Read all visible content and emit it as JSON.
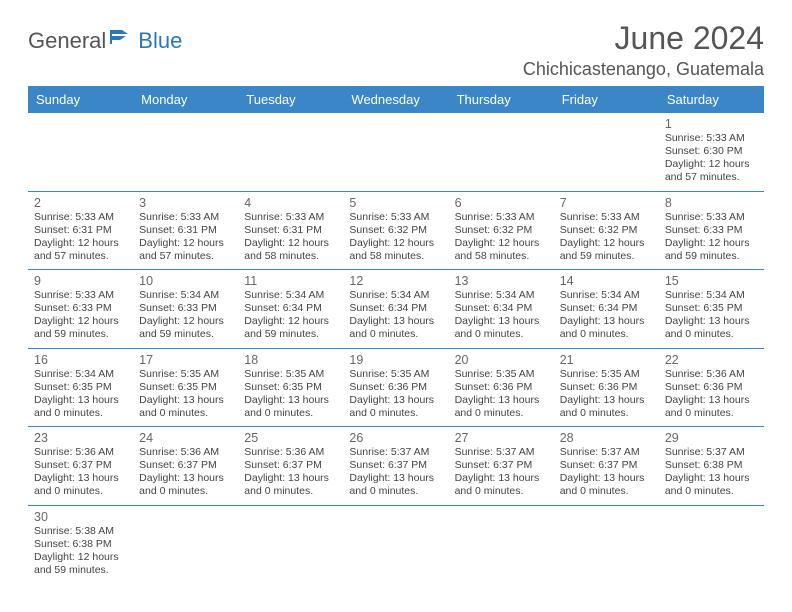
{
  "logo": {
    "text1": "General",
    "text2": "Blue"
  },
  "title": "June 2024",
  "location": "Chichicastenango, Guatemala",
  "colors": {
    "header_bg": "#3b86c6",
    "header_text": "#ffffff",
    "border": "#3b86c6",
    "body_text": "#444444",
    "daynum": "#666666",
    "title_text": "#555555",
    "logo_blue": "#2a78b8",
    "background": "#ffffff"
  },
  "weekdays": [
    "Sunday",
    "Monday",
    "Tuesday",
    "Wednesday",
    "Thursday",
    "Friday",
    "Saturday"
  ],
  "days": {
    "1": {
      "sunrise": "5:33 AM",
      "sunset": "6:30 PM",
      "daylight": "12 hours and 57 minutes."
    },
    "2": {
      "sunrise": "5:33 AM",
      "sunset": "6:31 PM",
      "daylight": "12 hours and 57 minutes."
    },
    "3": {
      "sunrise": "5:33 AM",
      "sunset": "6:31 PM",
      "daylight": "12 hours and 57 minutes."
    },
    "4": {
      "sunrise": "5:33 AM",
      "sunset": "6:31 PM",
      "daylight": "12 hours and 58 minutes."
    },
    "5": {
      "sunrise": "5:33 AM",
      "sunset": "6:32 PM",
      "daylight": "12 hours and 58 minutes."
    },
    "6": {
      "sunrise": "5:33 AM",
      "sunset": "6:32 PM",
      "daylight": "12 hours and 58 minutes."
    },
    "7": {
      "sunrise": "5:33 AM",
      "sunset": "6:32 PM",
      "daylight": "12 hours and 59 minutes."
    },
    "8": {
      "sunrise": "5:33 AM",
      "sunset": "6:33 PM",
      "daylight": "12 hours and 59 minutes."
    },
    "9": {
      "sunrise": "5:33 AM",
      "sunset": "6:33 PM",
      "daylight": "12 hours and 59 minutes."
    },
    "10": {
      "sunrise": "5:34 AM",
      "sunset": "6:33 PM",
      "daylight": "12 hours and 59 minutes."
    },
    "11": {
      "sunrise": "5:34 AM",
      "sunset": "6:34 PM",
      "daylight": "12 hours and 59 minutes."
    },
    "12": {
      "sunrise": "5:34 AM",
      "sunset": "6:34 PM",
      "daylight": "13 hours and 0 minutes."
    },
    "13": {
      "sunrise": "5:34 AM",
      "sunset": "6:34 PM",
      "daylight": "13 hours and 0 minutes."
    },
    "14": {
      "sunrise": "5:34 AM",
      "sunset": "6:34 PM",
      "daylight": "13 hours and 0 minutes."
    },
    "15": {
      "sunrise": "5:34 AM",
      "sunset": "6:35 PM",
      "daylight": "13 hours and 0 minutes."
    },
    "16": {
      "sunrise": "5:34 AM",
      "sunset": "6:35 PM",
      "daylight": "13 hours and 0 minutes."
    },
    "17": {
      "sunrise": "5:35 AM",
      "sunset": "6:35 PM",
      "daylight": "13 hours and 0 minutes."
    },
    "18": {
      "sunrise": "5:35 AM",
      "sunset": "6:35 PM",
      "daylight": "13 hours and 0 minutes."
    },
    "19": {
      "sunrise": "5:35 AM",
      "sunset": "6:36 PM",
      "daylight": "13 hours and 0 minutes."
    },
    "20": {
      "sunrise": "5:35 AM",
      "sunset": "6:36 PM",
      "daylight": "13 hours and 0 minutes."
    },
    "21": {
      "sunrise": "5:35 AM",
      "sunset": "6:36 PM",
      "daylight": "13 hours and 0 minutes."
    },
    "22": {
      "sunrise": "5:36 AM",
      "sunset": "6:36 PM",
      "daylight": "13 hours and 0 minutes."
    },
    "23": {
      "sunrise": "5:36 AM",
      "sunset": "6:37 PM",
      "daylight": "13 hours and 0 minutes."
    },
    "24": {
      "sunrise": "5:36 AM",
      "sunset": "6:37 PM",
      "daylight": "13 hours and 0 minutes."
    },
    "25": {
      "sunrise": "5:36 AM",
      "sunset": "6:37 PM",
      "daylight": "13 hours and 0 minutes."
    },
    "26": {
      "sunrise": "5:37 AM",
      "sunset": "6:37 PM",
      "daylight": "13 hours and 0 minutes."
    },
    "27": {
      "sunrise": "5:37 AM",
      "sunset": "6:37 PM",
      "daylight": "13 hours and 0 minutes."
    },
    "28": {
      "sunrise": "5:37 AM",
      "sunset": "6:37 PM",
      "daylight": "13 hours and 0 minutes."
    },
    "29": {
      "sunrise": "5:37 AM",
      "sunset": "6:38 PM",
      "daylight": "13 hours and 0 minutes."
    },
    "30": {
      "sunrise": "5:38 AM",
      "sunset": "6:38 PM",
      "daylight": "12 hours and 59 minutes."
    }
  },
  "labels": {
    "sunrise": "Sunrise:",
    "sunset": "Sunset:",
    "daylight": "Daylight:"
  },
  "layout": {
    "first_weekday_index": 6,
    "num_days": 30,
    "columns": 7,
    "cell_fontsize_pt": 10.5,
    "header_fontsize_pt": 13,
    "title_fontsize_pt": 32,
    "location_fontsize_pt": 18
  }
}
